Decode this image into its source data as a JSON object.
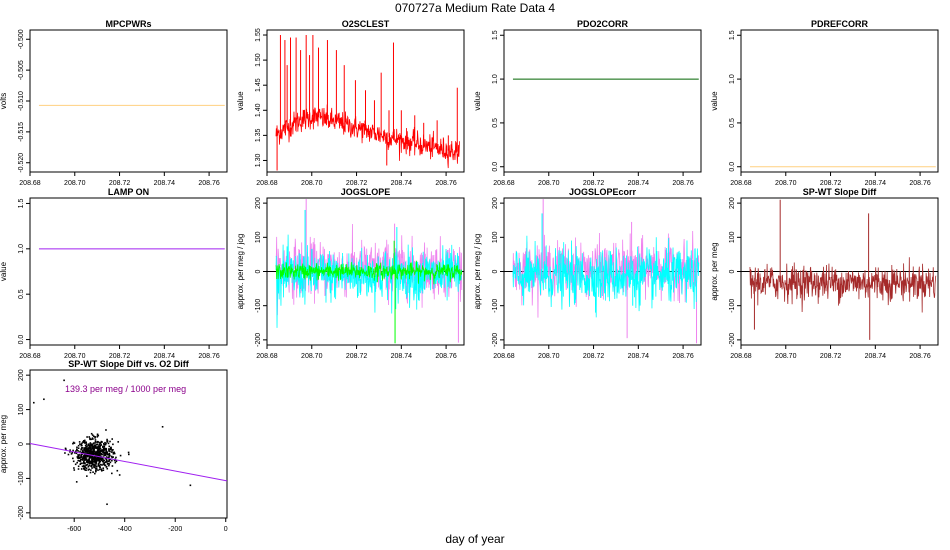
{
  "page": {
    "title": "070727a   Medium Rate Data 4",
    "xlabel": "day of year"
  },
  "chart_data": [
    {
      "type": "line",
      "title": "MPCPWRs",
      "ylabel": "volts",
      "xlim": [
        208.68,
        208.768
      ],
      "ylim": [
        -0.5215,
        -0.4985
      ],
      "xticks": [
        208.68,
        208.7,
        208.72,
        208.74,
        208.76
      ],
      "xtick_labels": [
        "208.68",
        "208.70",
        "208.72",
        "208.74",
        "208.76"
      ],
      "yticks": [
        -0.52,
        -0.515,
        -0.51,
        -0.505,
        -0.5
      ],
      "ytick_labels": [
        "-0.520",
        "-0.515",
        "-0.510",
        "-0.505",
        "-0.500"
      ],
      "series": [
        {
          "color": "#ffd080",
          "x": [
            208.684,
            208.767
          ],
          "y": [
            -0.5107,
            -0.5107
          ]
        }
      ]
    },
    {
      "type": "line",
      "title": "O2SCLEST",
      "ylabel": "value",
      "xlim": [
        208.68,
        208.768
      ],
      "ylim": [
        1.277,
        1.56
      ],
      "xticks": [
        208.68,
        208.7,
        208.72,
        208.74,
        208.76
      ],
      "xtick_labels": [
        "208.68",
        "208.70",
        "208.72",
        "208.74",
        "208.76"
      ],
      "yticks": [
        1.3,
        1.35,
        1.4,
        1.45,
        1.5,
        1.55
      ],
      "ytick_labels": [
        "1.30",
        "1.35",
        "1.40",
        "1.45",
        "1.50",
        "1.55"
      ],
      "series": [
        {
          "color": "#ff0000",
          "noise": 0.012,
          "x": [
            208.684,
            208.69,
            208.695,
            208.7,
            208.703,
            208.71,
            208.72,
            208.73,
            208.74,
            208.75,
            208.76,
            208.766
          ],
          "y": [
            1.352,
            1.368,
            1.38,
            1.387,
            1.386,
            1.378,
            1.365,
            1.352,
            1.34,
            1.33,
            1.32,
            1.317
          ],
          "spikes": [
            {
              "x": 208.6845,
              "y": 1.28
            },
            {
              "x": 208.686,
              "y": 1.55
            },
            {
              "x": 208.688,
              "y": 1.54
            },
            {
              "x": 208.689,
              "y": 1.49
            },
            {
              "x": 208.6905,
              "y": 1.545
            },
            {
              "x": 208.693,
              "y": 1.545
            },
            {
              "x": 208.695,
              "y": 1.52
            },
            {
              "x": 208.6975,
              "y": 1.55
            },
            {
              "x": 208.699,
              "y": 1.51
            },
            {
              "x": 208.7005,
              "y": 1.55
            },
            {
              "x": 208.703,
              "y": 1.525
            },
            {
              "x": 208.707,
              "y": 1.54
            },
            {
              "x": 208.711,
              "y": 1.52
            },
            {
              "x": 208.7145,
              "y": 1.49
            },
            {
              "x": 208.7195,
              "y": 1.46
            },
            {
              "x": 208.724,
              "y": 1.44
            },
            {
              "x": 208.728,
              "y": 1.42
            },
            {
              "x": 208.731,
              "y": 1.475
            },
            {
              "x": 208.7335,
              "y": 1.29
            },
            {
              "x": 208.7345,
              "y": 1.4
            },
            {
              "x": 208.7365,
              "y": 1.535
            },
            {
              "x": 208.74,
              "y": 1.4
            },
            {
              "x": 208.746,
              "y": 1.39
            },
            {
              "x": 208.75,
              "y": 1.375
            },
            {
              "x": 208.756,
              "y": 1.38
            },
            {
              "x": 208.761,
              "y": 1.35
            },
            {
              "x": 208.765,
              "y": 1.445
            }
          ]
        }
      ]
    },
    {
      "type": "line",
      "title": "PDO2CORR",
      "ylabel": "value",
      "xlim": [
        208.68,
        208.768
      ],
      "ylim": [
        -0.06,
        1.56
      ],
      "xticks": [
        208.68,
        208.7,
        208.72,
        208.74,
        208.76
      ],
      "xtick_labels": [
        "208.68",
        "208.70",
        "208.72",
        "208.74",
        "208.76"
      ],
      "yticks": [
        0.0,
        0.5,
        1.0,
        1.5
      ],
      "ytick_labels": [
        "0.0",
        "0.5",
        "1.0",
        "1.5"
      ],
      "series": [
        {
          "color": "#006400",
          "x": [
            208.684,
            208.767
          ],
          "y": [
            1.0,
            1.0
          ]
        }
      ]
    },
    {
      "type": "line",
      "title": "PDREFCORR",
      "ylabel": "value",
      "xlim": [
        208.68,
        208.768
      ],
      "ylim": [
        -0.06,
        1.56
      ],
      "xticks": [
        208.68,
        208.7,
        208.72,
        208.74,
        208.76
      ],
      "xtick_labels": [
        "208.68",
        "208.70",
        "208.72",
        "208.74",
        "208.76"
      ],
      "yticks": [
        0.0,
        0.5,
        1.0,
        1.5
      ],
      "ytick_labels": [
        "0.0",
        "0.5",
        "1.0",
        "1.5"
      ],
      "series": [
        {
          "color": "#ffd080",
          "x": [
            208.684,
            208.767
          ],
          "y": [
            0.0,
            0.0
          ]
        }
      ]
    },
    {
      "type": "line",
      "title": "LAMP ON",
      "ylabel": "value",
      "xlim": [
        208.68,
        208.768
      ],
      "ylim": [
        -0.06,
        1.56
      ],
      "xticks": [
        208.68,
        208.7,
        208.72,
        208.74,
        208.76
      ],
      "xtick_labels": [
        "208.68",
        "208.70",
        "208.72",
        "208.74",
        "208.76"
      ],
      "yticks": [
        0.0,
        0.5,
        1.0,
        1.5
      ],
      "ytick_labels": [
        "0.0",
        "0.5",
        "1.0",
        "1.5"
      ],
      "series": [
        {
          "color": "#a020f0",
          "x": [
            208.684,
            208.767
          ],
          "y": [
            1.0,
            1.0
          ]
        }
      ]
    },
    {
      "type": "line",
      "title": "JOGSLOPE",
      "ylabel": "approx. per meg / jog",
      "xlim": [
        208.68,
        208.768
      ],
      "ylim": [
        -215,
        215
      ],
      "xticks": [
        208.68,
        208.7,
        208.72,
        208.74,
        208.76
      ],
      "xtick_labels": [
        "208.68",
        "208.70",
        "208.72",
        "208.74",
        "208.76"
      ],
      "yticks": [
        -200,
        -100,
        0,
        100,
        200
      ],
      "ytick_labels": [
        "-200",
        "-100",
        "0",
        "100",
        "200"
      ],
      "hline": 0,
      "series": [
        {
          "color": "#ee82ee",
          "x": [
            208.684,
            208.767
          ],
          "y": [
            8,
            8
          ],
          "noise": 40,
          "spikes": [
            {
              "x": 208.6975,
              "y": 212
            },
            {
              "x": 208.737,
              "y": 140
            },
            {
              "x": 208.7655,
              "y": -208
            }
          ]
        },
        {
          "color": "#00ffff",
          "x": [
            208.684,
            208.767
          ],
          "y": [
            -12,
            -12
          ],
          "noise": 38,
          "spikes": [
            {
              "x": 208.697,
              "y": 180
            },
            {
              "x": 208.7375,
              "y": -110
            },
            {
              "x": 208.738,
              "y": 130
            }
          ]
        },
        {
          "color": "#00ff00",
          "x": [
            208.684,
            208.767
          ],
          "y": [
            0,
            0
          ],
          "noise": 12,
          "spikes": [
            {
              "x": 208.7372,
              "y": -210
            },
            {
              "x": 208.7368,
              "y": 90
            }
          ]
        }
      ]
    },
    {
      "type": "line",
      "title": "JOGSLOPEcorr",
      "ylabel": "approx. per meg / jog",
      "xlim": [
        208.68,
        208.768
      ],
      "ylim": [
        -215,
        215
      ],
      "xticks": [
        208.68,
        208.7,
        208.72,
        208.74,
        208.76
      ],
      "xtick_labels": [
        "208.68",
        "208.70",
        "208.72",
        "208.74",
        "208.76"
      ],
      "yticks": [
        -200,
        -100,
        0,
        100,
        200
      ],
      "ytick_labels": [
        "-200",
        "-100",
        "0",
        "100",
        "200"
      ],
      "hline": 0,
      "series": [
        {
          "color": "#ee82ee",
          "x": [
            208.684,
            208.767
          ],
          "y": [
            8,
            8
          ],
          "noise": 38,
          "spikes": [
            {
              "x": 208.6975,
              "y": 212
            },
            {
              "x": 208.735,
              "y": -195
            },
            {
              "x": 208.737,
              "y": 145
            },
            {
              "x": 208.766,
              "y": -210
            }
          ]
        },
        {
          "color": "#00ffff",
          "x": [
            208.684,
            208.767
          ],
          "y": [
            -14,
            -14
          ],
          "noise": 40,
          "spikes": [
            {
              "x": 208.697,
              "y": 170
            },
            {
              "x": 208.7375,
              "y": -100
            }
          ]
        }
      ]
    },
    {
      "type": "line",
      "title": "SP-WT Slope Diff",
      "ylabel": "approx. per meg",
      "xlim": [
        208.68,
        208.768
      ],
      "ylim": [
        -215,
        215
      ],
      "xticks": [
        208.68,
        208.7,
        208.72,
        208.74,
        208.76
      ],
      "xtick_labels": [
        "208.68",
        "208.70",
        "208.72",
        "208.74",
        "208.76"
      ],
      "yticks": [
        -200,
        -100,
        0,
        100,
        200
      ],
      "ytick_labels": [
        "-200",
        "-100",
        "0",
        "100",
        "200"
      ],
      "hline": 0,
      "series": [
        {
          "color": "#a52a2a",
          "x": [
            208.684,
            208.767
          ],
          "y": [
            -32,
            -32
          ],
          "noise": 26,
          "spikes": [
            {
              "x": 208.686,
              "y": -170
            },
            {
              "x": 208.6975,
              "y": 210
            },
            {
              "x": 208.737,
              "y": 170
            },
            {
              "x": 208.7375,
              "y": -200
            }
          ]
        }
      ]
    },
    {
      "type": "scatter",
      "title": "SP-WT Slope Diff vs. O2 Diff",
      "ylabel": "approx. per meg",
      "xlim": [
        -775,
        5
      ],
      "ylim": [
        -215,
        215
      ],
      "xticks": [
        -600,
        -400,
        -200,
        0
      ],
      "xtick_labels": [
        "-600",
        "-400",
        "-200",
        "0"
      ],
      "yticks": [
        -200,
        -100,
        0,
        100,
        200
      ],
      "ytick_labels": [
        "-200",
        "-100",
        "0",
        "100",
        "200"
      ],
      "annotation": "139.3 per meg / 1000 per meg",
      "annotation_color": "#8b008b",
      "fit": {
        "color": "#a020f0",
        "x": [
          -775,
          5
        ],
        "y": [
          1.5,
          -107.1
        ]
      },
      "cluster": {
        "x_center": -520,
        "x_sd": 38,
        "y_center": -32,
        "y_sd": 22,
        "n": 700
      },
      "outliers": [
        {
          "x": -640,
          "y": 185
        },
        {
          "x": -760,
          "y": 120
        },
        {
          "x": -720,
          "y": 130
        },
        {
          "x": -250,
          "y": 50
        },
        {
          "x": -140,
          "y": -120
        },
        {
          "x": -470,
          "y": -175
        },
        {
          "x": -590,
          "y": -110
        },
        {
          "x": -420,
          "y": -90
        }
      ],
      "point_color": "#000000"
    }
  ]
}
